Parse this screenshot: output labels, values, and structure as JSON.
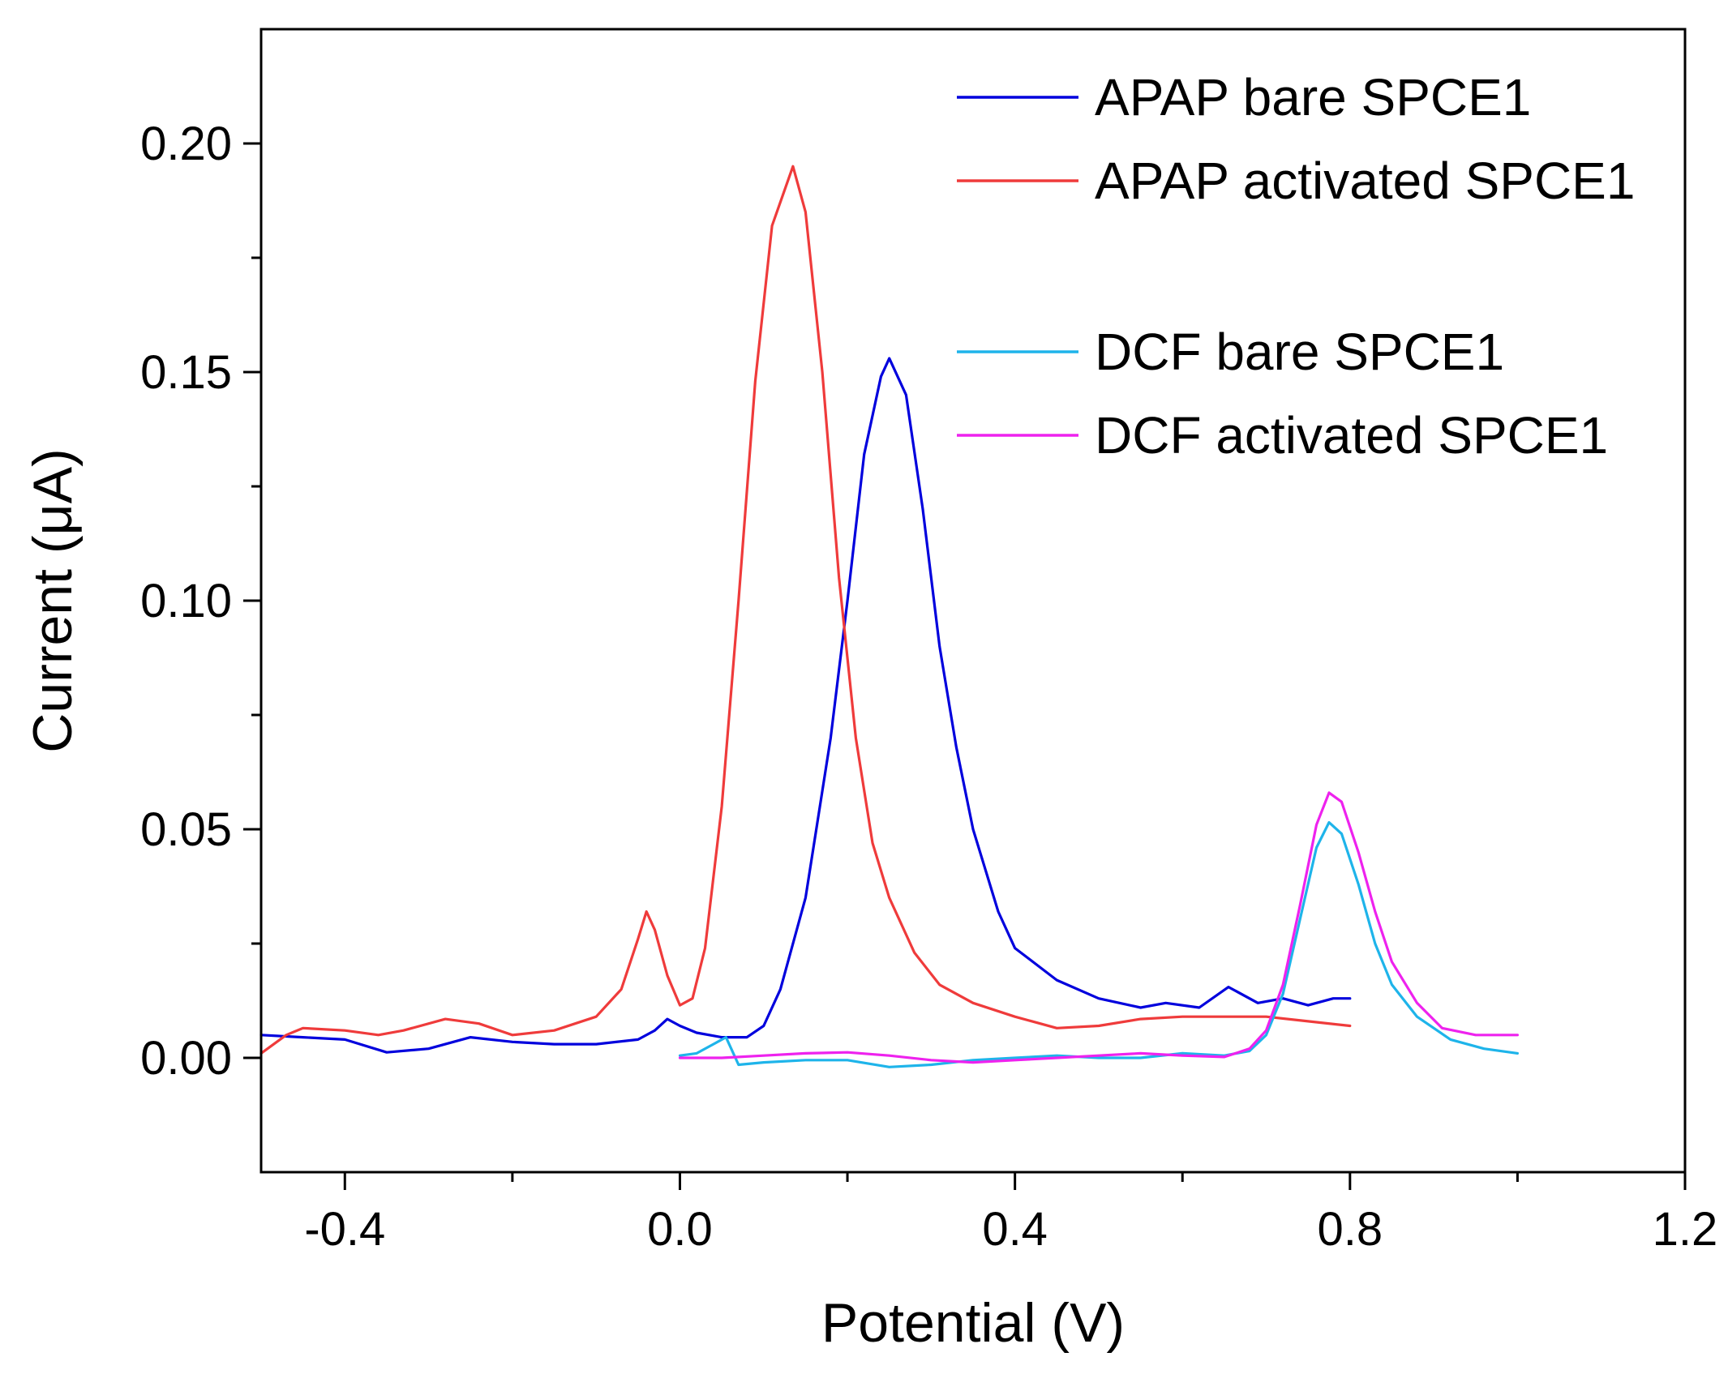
{
  "chart_data": {
    "type": "line",
    "title": "",
    "xlabel": "Potential (V)",
    "ylabel": "Current (μA)",
    "xlim": [
      -0.5,
      1.2
    ],
    "ylim": [
      -0.025,
      0.225
    ],
    "x_ticks": [
      -0.4,
      0.0,
      0.4,
      0.8,
      1.2
    ],
    "x_tick_labels": [
      "-0.4",
      "0.0",
      "0.4",
      "0.8",
      "1.2"
    ],
    "x_minor_ticks": [
      -0.2,
      0.2,
      0.6,
      1.0
    ],
    "y_ticks": [
      0.0,
      0.05,
      0.1,
      0.15,
      0.2
    ],
    "y_tick_labels": [
      "0.00",
      "0.05",
      "0.10",
      "0.15",
      "0.20"
    ],
    "y_minor_ticks": [
      0.025,
      0.075,
      0.125,
      0.175
    ],
    "grid": false,
    "legend_position": "top-right",
    "series": [
      {
        "name": "APAP bare SPCE1",
        "color": "#0000dd",
        "points": [
          [
            -0.5,
            0.005
          ],
          [
            -0.45,
            0.0045
          ],
          [
            -0.4,
            0.004
          ],
          [
            -0.35,
            0.0012
          ],
          [
            -0.3,
            0.002
          ],
          [
            -0.25,
            0.0045
          ],
          [
            -0.2,
            0.0035
          ],
          [
            -0.15,
            0.003
          ],
          [
            -0.1,
            0.003
          ],
          [
            -0.05,
            0.004
          ],
          [
            -0.03,
            0.006
          ],
          [
            -0.015,
            0.0085
          ],
          [
            0.0,
            0.007
          ],
          [
            0.02,
            0.0055
          ],
          [
            0.05,
            0.0045
          ],
          [
            0.08,
            0.0045
          ],
          [
            0.1,
            0.007
          ],
          [
            0.12,
            0.015
          ],
          [
            0.15,
            0.035
          ],
          [
            0.18,
            0.07
          ],
          [
            0.2,
            0.1
          ],
          [
            0.22,
            0.132
          ],
          [
            0.24,
            0.149
          ],
          [
            0.25,
            0.153
          ],
          [
            0.27,
            0.145
          ],
          [
            0.29,
            0.12
          ],
          [
            0.31,
            0.09
          ],
          [
            0.33,
            0.068
          ],
          [
            0.35,
            0.05
          ],
          [
            0.38,
            0.032
          ],
          [
            0.4,
            0.024
          ],
          [
            0.45,
            0.017
          ],
          [
            0.5,
            0.013
          ],
          [
            0.55,
            0.011
          ],
          [
            0.58,
            0.012
          ],
          [
            0.62,
            0.011
          ],
          [
            0.655,
            0.0155
          ],
          [
            0.69,
            0.012
          ],
          [
            0.72,
            0.013
          ],
          [
            0.75,
            0.0115
          ],
          [
            0.78,
            0.013
          ],
          [
            0.8,
            0.013
          ]
        ]
      },
      {
        "name": "APAP activated SPCE1",
        "color": "#ef3b3b",
        "points": [
          [
            -0.5,
            0.001
          ],
          [
            -0.47,
            0.005
          ],
          [
            -0.45,
            0.0065
          ],
          [
            -0.4,
            0.006
          ],
          [
            -0.36,
            0.005
          ],
          [
            -0.33,
            0.006
          ],
          [
            -0.28,
            0.0085
          ],
          [
            -0.24,
            0.0075
          ],
          [
            -0.2,
            0.005
          ],
          [
            -0.15,
            0.006
          ],
          [
            -0.1,
            0.009
          ],
          [
            -0.07,
            0.015
          ],
          [
            -0.05,
            0.026
          ],
          [
            -0.04,
            0.032
          ],
          [
            -0.03,
            0.028
          ],
          [
            -0.015,
            0.018
          ],
          [
            0.0,
            0.0115
          ],
          [
            0.015,
            0.013
          ],
          [
            0.03,
            0.024
          ],
          [
            0.05,
            0.055
          ],
          [
            0.07,
            0.1
          ],
          [
            0.09,
            0.148
          ],
          [
            0.11,
            0.182
          ],
          [
            0.135,
            0.195
          ],
          [
            0.15,
            0.185
          ],
          [
            0.17,
            0.15
          ],
          [
            0.19,
            0.105
          ],
          [
            0.21,
            0.07
          ],
          [
            0.23,
            0.047
          ],
          [
            0.25,
            0.035
          ],
          [
            0.28,
            0.023
          ],
          [
            0.31,
            0.016
          ],
          [
            0.35,
            0.012
          ],
          [
            0.4,
            0.009
          ],
          [
            0.45,
            0.0065
          ],
          [
            0.5,
            0.007
          ],
          [
            0.55,
            0.0085
          ],
          [
            0.6,
            0.009
          ],
          [
            0.65,
            0.009
          ],
          [
            0.7,
            0.009
          ],
          [
            0.75,
            0.008
          ],
          [
            0.8,
            0.007
          ]
        ]
      },
      {
        "name": "DCF bare SPCE1",
        "color": "#1eb4ea",
        "points": [
          [
            0.0,
            0.0005
          ],
          [
            0.02,
            0.001
          ],
          [
            0.04,
            0.003
          ],
          [
            0.055,
            0.0045
          ],
          [
            0.07,
            -0.0015
          ],
          [
            0.1,
            -0.001
          ],
          [
            0.15,
            -0.0005
          ],
          [
            0.2,
            -0.0005
          ],
          [
            0.25,
            -0.002
          ],
          [
            0.3,
            -0.0015
          ],
          [
            0.35,
            -0.0005
          ],
          [
            0.4,
            0.0
          ],
          [
            0.45,
            0.0005
          ],
          [
            0.5,
            0.0
          ],
          [
            0.55,
            0.0
          ],
          [
            0.6,
            0.001
          ],
          [
            0.65,
            0.0005
          ],
          [
            0.68,
            0.0015
          ],
          [
            0.7,
            0.005
          ],
          [
            0.72,
            0.014
          ],
          [
            0.74,
            0.03
          ],
          [
            0.76,
            0.046
          ],
          [
            0.775,
            0.0515
          ],
          [
            0.79,
            0.049
          ],
          [
            0.81,
            0.038
          ],
          [
            0.83,
            0.025
          ],
          [
            0.85,
            0.016
          ],
          [
            0.88,
            0.009
          ],
          [
            0.92,
            0.004
          ],
          [
            0.96,
            0.002
          ],
          [
            1.0,
            0.001
          ]
        ]
      },
      {
        "name": "DCF activated SPCE1",
        "color": "#ee22ee",
        "points": [
          [
            0.0,
            0.0
          ],
          [
            0.05,
            0.0
          ],
          [
            0.1,
            0.0005
          ],
          [
            0.15,
            0.001
          ],
          [
            0.2,
            0.0012
          ],
          [
            0.25,
            0.0005
          ],
          [
            0.3,
            -0.0005
          ],
          [
            0.35,
            -0.001
          ],
          [
            0.4,
            -0.0005
          ],
          [
            0.45,
            0.0
          ],
          [
            0.5,
            0.0005
          ],
          [
            0.55,
            0.001
          ],
          [
            0.6,
            0.0005
          ],
          [
            0.65,
            0.0002
          ],
          [
            0.68,
            0.002
          ],
          [
            0.7,
            0.006
          ],
          [
            0.72,
            0.016
          ],
          [
            0.74,
            0.033
          ],
          [
            0.76,
            0.051
          ],
          [
            0.775,
            0.058
          ],
          [
            0.79,
            0.056
          ],
          [
            0.81,
            0.045
          ],
          [
            0.83,
            0.032
          ],
          [
            0.85,
            0.021
          ],
          [
            0.88,
            0.012
          ],
          [
            0.91,
            0.0065
          ],
          [
            0.95,
            0.005
          ],
          [
            1.0,
            0.005
          ]
        ]
      }
    ],
    "legend_groups": [
      [
        0,
        1
      ],
      [
        2,
        3
      ]
    ]
  }
}
